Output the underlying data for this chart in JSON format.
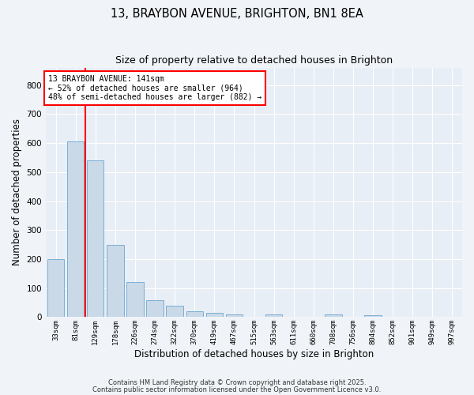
{
  "title1": "13, BRAYBON AVENUE, BRIGHTON, BN1 8EA",
  "title2": "Size of property relative to detached houses in Brighton",
  "xlabel": "Distribution of detached houses by size in Brighton",
  "ylabel": "Number of detached properties",
  "categories": [
    "33sqm",
    "81sqm",
    "129sqm",
    "178sqm",
    "226sqm",
    "274sqm",
    "322sqm",
    "370sqm",
    "419sqm",
    "467sqm",
    "515sqm",
    "563sqm",
    "611sqm",
    "660sqm",
    "708sqm",
    "756sqm",
    "804sqm",
    "852sqm",
    "901sqm",
    "949sqm",
    "997sqm"
  ],
  "values": [
    200,
    605,
    540,
    248,
    120,
    58,
    38,
    20,
    15,
    10,
    0,
    8,
    0,
    0,
    8,
    0,
    7,
    0,
    0,
    0,
    0
  ],
  "bar_color": "#c9d9e8",
  "bar_edge_color": "#7bafd4",
  "red_line_index": 1.5,
  "annotation_box_text": "13 BRAYBON AVENUE: 141sqm\n← 52% of detached houses are smaller (964)\n48% of semi-detached houses are larger (882) →",
  "ylim": [
    0,
    860
  ],
  "yticks": [
    0,
    100,
    200,
    300,
    400,
    500,
    600,
    700,
    800
  ],
  "background_color": "#e8eef5",
  "grid_color": "#ffffff",
  "footer1": "Contains HM Land Registry data © Crown copyright and database right 2025.",
  "footer2": "Contains public sector information licensed under the Open Government Licence v3.0."
}
